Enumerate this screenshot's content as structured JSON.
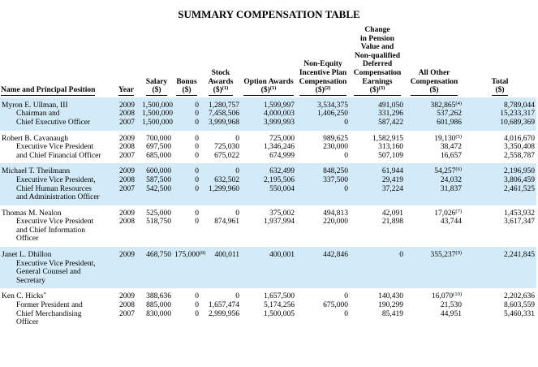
{
  "title": "SUMMARY COMPENSATION TABLE",
  "table": {
    "columns": [
      {
        "lines": [
          "Name and Principal Position"
        ]
      },
      {
        "lines": [
          "Year"
        ]
      },
      {
        "lines": [
          "Salary",
          "($)"
        ]
      },
      {
        "lines": [
          "Bonus",
          "($)"
        ]
      },
      {
        "lines": [
          "Stock",
          "Awards",
          "($)"
        ],
        "note": "(1)"
      },
      {
        "lines": [
          "Option Awards",
          "($)"
        ],
        "note": "(1)"
      },
      {
        "lines": [
          "Non-Equity",
          "Incentive Plan",
          "Compensation",
          "($)"
        ],
        "note": "(2)"
      },
      {
        "lines": [
          "Change",
          "in Pension",
          "Value and",
          "Non-qualified",
          "Deferred",
          "Compensation",
          "Earnings",
          "($)"
        ],
        "note": "(3)"
      },
      {
        "lines": [
          "All Other",
          "Compensation",
          "($)"
        ]
      },
      {
        "lines": [
          "Total",
          "($)"
        ]
      }
    ],
    "rows": [
      {
        "name": "Myron E. Ullman, III",
        "positions": [
          "Chairman and",
          "Chief Executive Officer"
        ],
        "years": [
          {
            "year": "2009",
            "values": [
              "1,500,000",
              "0",
              "1,280,757",
              "1,599,997",
              "3,534,375",
              "491,050",
              {
                "text": "382,865",
                "note": "(4)"
              },
              "8,789,044"
            ]
          },
          {
            "year": "2008",
            "values": [
              "1,500,000",
              "0",
              "7,458,506",
              "4,000,003",
              "1,406,250",
              "331,296",
              "537,262",
              "15,233,317"
            ]
          },
          {
            "year": "2007",
            "values": [
              "1,500,000",
              "0",
              "3,999,968",
              "3,999,993",
              "0",
              "587,422",
              "601,986",
              "10,689,369"
            ]
          }
        ]
      },
      {
        "name": "Robert B. Cavanaugh",
        "positions": [
          "Executive Vice President",
          "and Chief Financial Officer"
        ],
        "years": [
          {
            "year": "2009",
            "values": [
              "700,000",
              "0",
              "0",
              "725,000",
              "989,625",
              "1,582,915",
              {
                "text": "19,130",
                "note": "(5)"
              },
              "4,016,670"
            ]
          },
          {
            "year": "2008",
            "values": [
              "697,500",
              "0",
              "725,030",
              "1,346,246",
              "230,000",
              "313,160",
              "38,472",
              "3,350,408"
            ]
          },
          {
            "year": "2007",
            "values": [
              "685,000",
              "0",
              "675,022",
              "674,999",
              "0",
              "507,109",
              "16,657",
              "2,558,787"
            ]
          }
        ]
      },
      {
        "name": "Michael T. Theilmann",
        "positions": [
          "Executive Vice President,",
          "Chief Human Resources",
          "and Administration Officer"
        ],
        "years": [
          {
            "year": "2009",
            "values": [
              "600,000",
              "0",
              "0",
              "632,499",
              "848,250",
              "61,944",
              {
                "text": "54,257",
                "note": "(6)"
              },
              "2,196,950"
            ]
          },
          {
            "year": "2008",
            "values": [
              "587,500",
              "0",
              "632,502",
              "2,195,506",
              "337,500",
              "29,419",
              "24,032",
              "3,806,459"
            ]
          },
          {
            "year": "2007",
            "values": [
              "542,500",
              "0",
              "1,299,960",
              "550,004",
              "0",
              "37,224",
              "31,837",
              "2,461,525"
            ]
          }
        ]
      },
      {
        "name": "Thomas M. Nealon",
        "positions": [
          "Executive Vice President",
          "and Chief Information",
          "Officer"
        ],
        "years": [
          {
            "year": "2009",
            "values": [
              "525,000",
              "0",
              "0",
              "375,002",
              "494,813",
              "42,091",
              {
                "text": "17,026",
                "note": "(7)"
              },
              "1,453,932"
            ]
          },
          {
            "year": "2008",
            "values": [
              "518,750",
              "0",
              "874,961",
              "1,937,994",
              "220,000",
              "21,898",
              "43,744",
              "3,617,347"
            ]
          }
        ]
      },
      {
        "name": "Janet L. Dhillon",
        "positions": [
          "Executive Vice President,",
          "General Counsel and",
          "Secretary"
        ],
        "years": [
          {
            "year": "2009",
            "values": [
              "468,750",
              {
                "text": "175,000",
                "note": "(8)"
              },
              "400,011",
              "400,001",
              "442,846",
              "0",
              {
                "text": "355,237",
                "note": "(9)"
              },
              "2,241,845"
            ]
          }
        ]
      },
      {
        "name": {
          "text": "Ken C. Hicks",
          "note": "*"
        },
        "positions": [
          "Former President and",
          "Chief Merchandising",
          "Officer"
        ],
        "years": [
          {
            "year": "2009",
            "values": [
              "388,636",
              "0",
              "0",
              "1,657,500",
              "0",
              "140,430",
              {
                "text": "16,070",
                "note": "(10)"
              },
              "2,202,636"
            ]
          },
          {
            "year": "2008",
            "values": [
              "885,000",
              "0",
              "1,657,474",
              "5,174,256",
              "675,000",
              "190,299",
              "21,530",
              "8,603,559"
            ]
          },
          {
            "year": "2007",
            "values": [
              "830,000",
              "0",
              "2,999,956",
              "1,500,005",
              "0",
              "85,419",
              "44,951",
              "5,460,331"
            ]
          }
        ]
      }
    ]
  }
}
